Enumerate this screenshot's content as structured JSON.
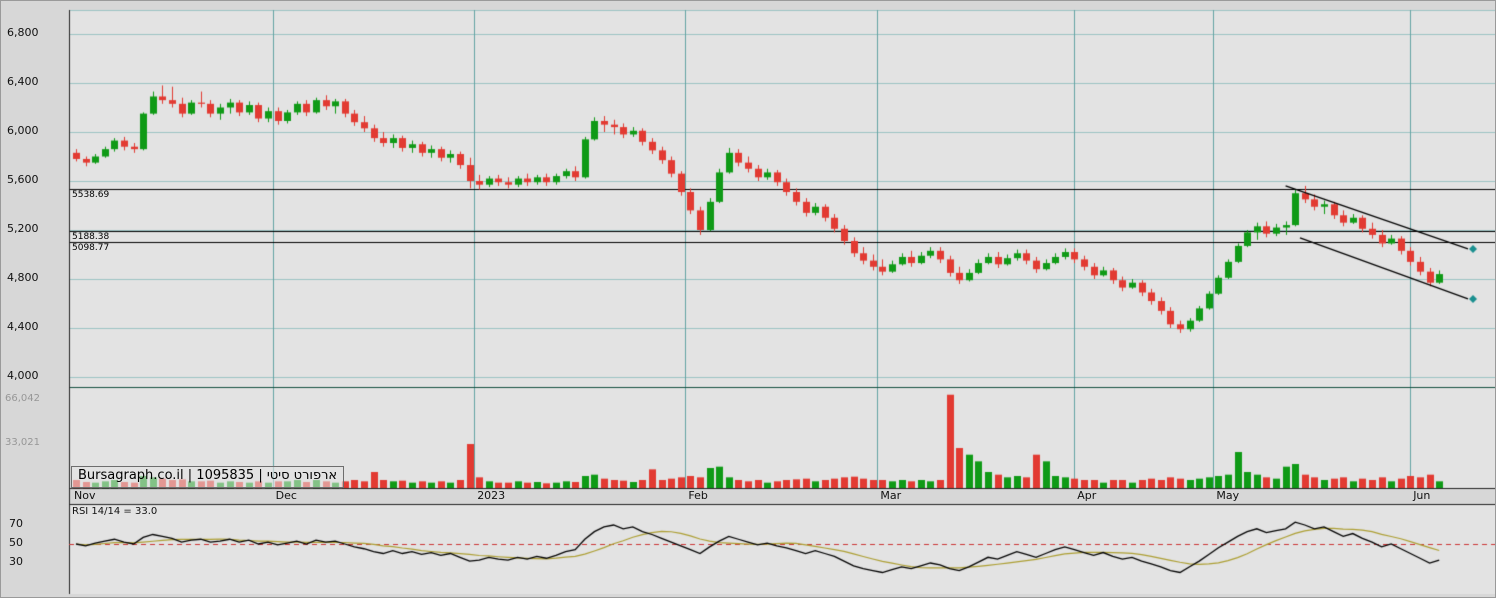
{
  "watermark": {
    "site": "Bursagraph.co.il",
    "security_id": "1095835",
    "security_name": "ארפורט סיטי",
    "display": "Bursagraph.co.il | 1095835 | ארפורט סיטי"
  },
  "price_axis": {
    "ticks": [
      [
        "6,800",
        6800
      ],
      [
        "6,400",
        6400
      ],
      [
        "6,000",
        6000
      ],
      [
        "5,600",
        5600
      ],
      [
        "5,200",
        5200
      ],
      [
        "4,800",
        4800
      ],
      [
        "4,400",
        4400
      ],
      [
        "4,000",
        4000
      ]
    ]
  },
  "volume_axis": {
    "ticks": [
      [
        "66,042",
        66042
      ],
      [
        "33,021",
        33021
      ]
    ]
  },
  "time_axis": {
    "ticks": [
      [
        "Nov",
        0
      ],
      [
        "Dec",
        21
      ],
      [
        "2023",
        42
      ],
      [
        "Feb",
        64
      ],
      [
        "Mar",
        84
      ],
      [
        "Apr",
        104.5
      ],
      [
        "May",
        119
      ],
      [
        "Jun",
        139.5
      ]
    ]
  },
  "levels": [
    [
      "5538.69",
      5538.69
    ],
    [
      "5188.38",
      5188.38
    ],
    [
      "5098.77",
      5098.77
    ]
  ],
  "rsi_panel": {
    "title": "RSI 14/14 = 33.0",
    "ticks": [
      [
        "70",
        70
      ],
      [
        "50",
        50
      ],
      [
        "30",
        30
      ]
    ],
    "mid": 50
  },
  "colors": {
    "stage_bg": "#d7d7d7",
    "plot_bg": "#e3e3e3",
    "grid": "#9cc4c4",
    "month_line": "#63a3a3",
    "pane_border": "#134f3f",
    "axis_line": "#222222",
    "up": "#0f9a16",
    "down": "#e23a32",
    "level_line": "#000000",
    "channel_line": "#000000",
    "marker": "#1a9090",
    "rsi_line": "#000000",
    "rsi_ma": "#ad9f32",
    "rsi_mid": "#cc3333",
    "vol_label": "#979797"
  },
  "chart_data": {
    "type": "candlestick",
    "title": "ארפורט סיטי (1095835) daily chart, Nov 2022 - Jun 2023, with volume and RSI",
    "ohlcv_format": [
      "open",
      "high",
      "low",
      "close",
      "volume"
    ],
    "ylim": [
      3800,
      7050
    ],
    "volume_scale_max": 66042,
    "rsi_period": "14/14",
    "rsi_last": 33.0,
    "horizontal_levels": [
      5538.69,
      5188.38,
      5098.77
    ],
    "channel": {
      "upper": [
        [
          126,
          5560
        ],
        [
          145,
          5045
        ]
      ],
      "lower": [
        [
          127.5,
          5135
        ],
        [
          145,
          4637
        ]
      ]
    },
    "candles": [
      [
        5830,
        5860,
        5760,
        5780,
        6000
      ],
      [
        5780,
        5800,
        5720,
        5750,
        4500
      ],
      [
        5750,
        5820,
        5740,
        5800,
        4000
      ],
      [
        5800,
        5880,
        5790,
        5860,
        5000
      ],
      [
        5860,
        5950,
        5840,
        5930,
        6000
      ],
      [
        5930,
        5960,
        5850,
        5880,
        4500
      ],
      [
        5880,
        5910,
        5830,
        5860,
        4000
      ],
      [
        5860,
        6160,
        5850,
        6150,
        9000
      ],
      [
        6150,
        6330,
        6140,
        6290,
        8000
      ],
      [
        6290,
        6380,
        6230,
        6260,
        7000
      ],
      [
        6260,
        6370,
        6200,
        6230,
        6000
      ],
      [
        6230,
        6280,
        6120,
        6150,
        6500
      ],
      [
        6150,
        6260,
        6140,
        6240,
        5000
      ],
      [
        6240,
        6330,
        6200,
        6230,
        5000
      ],
      [
        6230,
        6260,
        6120,
        6150,
        5500
      ],
      [
        6150,
        6230,
        6100,
        6200,
        4000
      ],
      [
        6200,
        6270,
        6150,
        6240,
        5000
      ],
      [
        6240,
        6260,
        6130,
        6160,
        4500
      ],
      [
        6160,
        6250,
        6140,
        6220,
        4000
      ],
      [
        6220,
        6240,
        6080,
        6110,
        5000
      ],
      [
        6110,
        6200,
        6080,
        6170,
        4000
      ],
      [
        6170,
        6200,
        6060,
        6090,
        5000
      ],
      [
        6090,
        6180,
        6070,
        6160,
        5000
      ],
      [
        6160,
        6250,
        6140,
        6230,
        6000
      ],
      [
        6230,
        6260,
        6130,
        6160,
        4500
      ],
      [
        6160,
        6280,
        6150,
        6260,
        6000
      ],
      [
        6260,
        6300,
        6180,
        6210,
        5000
      ],
      [
        6210,
        6270,
        6150,
        6250,
        4000
      ],
      [
        6250,
        6270,
        6120,
        6150,
        5000
      ],
      [
        6150,
        6180,
        6050,
        6080,
        6000
      ],
      [
        6080,
        6130,
        6000,
        6030,
        5000
      ],
      [
        6030,
        6060,
        5920,
        5950,
        12000
      ],
      [
        5950,
        6000,
        5880,
        5910,
        6000
      ],
      [
        5910,
        5980,
        5870,
        5950,
        5000
      ],
      [
        5950,
        5970,
        5840,
        5870,
        5500
      ],
      [
        5870,
        5930,
        5830,
        5900,
        4000
      ],
      [
        5900,
        5920,
        5800,
        5830,
        5000
      ],
      [
        5830,
        5890,
        5790,
        5860,
        4000
      ],
      [
        5860,
        5880,
        5760,
        5790,
        5000
      ],
      [
        5790,
        5850,
        5750,
        5820,
        4000
      ],
      [
        5820,
        5840,
        5700,
        5730,
        6000
      ],
      [
        5730,
        5790,
        5540,
        5600,
        33000
      ],
      [
        5600,
        5650,
        5530,
        5570,
        8000
      ],
      [
        5570,
        5640,
        5550,
        5620,
        5000
      ],
      [
        5620,
        5650,
        5560,
        5590,
        4000
      ],
      [
        5590,
        5630,
        5540,
        5570,
        4000
      ],
      [
        5570,
        5640,
        5550,
        5620,
        5000
      ],
      [
        5620,
        5660,
        5560,
        5590,
        4000
      ],
      [
        5590,
        5650,
        5570,
        5630,
        4500
      ],
      [
        5630,
        5660,
        5560,
        5590,
        3500
      ],
      [
        5590,
        5660,
        5570,
        5640,
        4000
      ],
      [
        5640,
        5700,
        5620,
        5680,
        5000
      ],
      [
        5680,
        5720,
        5600,
        5630,
        4500
      ],
      [
        5630,
        5960,
        5620,
        5940,
        9000
      ],
      [
        5940,
        6120,
        5930,
        6090,
        10000
      ],
      [
        6090,
        6130,
        6000,
        6060,
        7000
      ],
      [
        6060,
        6100,
        5980,
        6040,
        6000
      ],
      [
        6040,
        6070,
        5950,
        5980,
        5500
      ],
      [
        5980,
        6040,
        5960,
        6010,
        4500
      ],
      [
        6010,
        6030,
        5890,
        5920,
        6000
      ],
      [
        5920,
        5950,
        5820,
        5850,
        14000
      ],
      [
        5850,
        5880,
        5740,
        5770,
        6000
      ],
      [
        5770,
        5800,
        5630,
        5660,
        7000
      ],
      [
        5660,
        5680,
        5480,
        5510,
        8000
      ],
      [
        5510,
        5540,
        5330,
        5360,
        9000
      ],
      [
        5360,
        5390,
        5160,
        5200,
        8000
      ],
      [
        5200,
        5460,
        5190,
        5430,
        15000
      ],
      [
        5430,
        5700,
        5420,
        5670,
        16000
      ],
      [
        5670,
        5870,
        5660,
        5830,
        8000
      ],
      [
        5830,
        5860,
        5720,
        5750,
        6000
      ],
      [
        5750,
        5800,
        5670,
        5700,
        5000
      ],
      [
        5700,
        5730,
        5600,
        5630,
        6000
      ],
      [
        5630,
        5700,
        5610,
        5670,
        4000
      ],
      [
        5670,
        5690,
        5560,
        5590,
        5000
      ],
      [
        5590,
        5620,
        5480,
        5510,
        6000
      ],
      [
        5510,
        5540,
        5400,
        5430,
        6500
      ],
      [
        5430,
        5460,
        5310,
        5340,
        7000
      ],
      [
        5340,
        5420,
        5320,
        5390,
        5000
      ],
      [
        5390,
        5410,
        5270,
        5300,
        6000
      ],
      [
        5300,
        5330,
        5180,
        5210,
        7000
      ],
      [
        5210,
        5240,
        5080,
        5110,
        8000
      ],
      [
        5110,
        5140,
        4980,
        5010,
        8500
      ],
      [
        5010,
        5060,
        4920,
        4950,
        7000
      ],
      [
        4950,
        5000,
        4870,
        4900,
        6000
      ],
      [
        4900,
        4960,
        4830,
        4860,
        6000
      ],
      [
        4860,
        4950,
        4850,
        4920,
        5000
      ],
      [
        4920,
        5010,
        4910,
        4980,
        6000
      ],
      [
        4980,
        5030,
        4900,
        4930,
        5000
      ],
      [
        4930,
        5020,
        4920,
        4990,
        6000
      ],
      [
        4990,
        5060,
        4970,
        5030,
        5000
      ],
      [
        5030,
        5060,
        4930,
        4960,
        6000
      ],
      [
        4960,
        4990,
        4820,
        4850,
        70000
      ],
      [
        4850,
        4900,
        4760,
        4790,
        30000
      ],
      [
        4790,
        4880,
        4780,
        4850,
        25000
      ],
      [
        4850,
        4960,
        4840,
        4930,
        20000
      ],
      [
        4930,
        5010,
        4920,
        4980,
        12000
      ],
      [
        4980,
        5020,
        4890,
        4920,
        10000
      ],
      [
        4920,
        5000,
        4910,
        4970,
        8000
      ],
      [
        4970,
        5040,
        4950,
        5010,
        9000
      ],
      [
        5010,
        5040,
        4920,
        4950,
        8000
      ],
      [
        4950,
        4980,
        4850,
        4880,
        25000
      ],
      [
        4880,
        4960,
        4870,
        4930,
        20000
      ],
      [
        4930,
        5010,
        4920,
        4980,
        9000
      ],
      [
        4980,
        5050,
        4960,
        5020,
        8000
      ],
      [
        5020,
        5050,
        4930,
        4960,
        7000
      ],
      [
        4960,
        4990,
        4870,
        4900,
        6000
      ],
      [
        4900,
        4930,
        4800,
        4830,
        6000
      ],
      [
        4830,
        4900,
        4820,
        4870,
        4000
      ],
      [
        4870,
        4890,
        4760,
        4790,
        6000
      ],
      [
        4790,
        4820,
        4700,
        4730,
        6000
      ],
      [
        4730,
        4800,
        4720,
        4770,
        4000
      ],
      [
        4770,
        4790,
        4660,
        4690,
        6000
      ],
      [
        4690,
        4720,
        4590,
        4620,
        7000
      ],
      [
        4620,
        4650,
        4510,
        4540,
        6000
      ],
      [
        4540,
        4570,
        4400,
        4430,
        8000
      ],
      [
        4430,
        4460,
        4360,
        4390,
        7000
      ],
      [
        4390,
        4480,
        4370,
        4460,
        6000
      ],
      [
        4460,
        4580,
        4450,
        4560,
        7000
      ],
      [
        4560,
        4700,
        4550,
        4680,
        8000
      ],
      [
        4680,
        4830,
        4670,
        4810,
        9000
      ],
      [
        4810,
        4960,
        4800,
        4940,
        10000
      ],
      [
        4940,
        5090,
        4930,
        5070,
        27000
      ],
      [
        5070,
        5200,
        5060,
        5180,
        12000
      ],
      [
        5180,
        5260,
        5120,
        5230,
        10000
      ],
      [
        5230,
        5270,
        5140,
        5170,
        8000
      ],
      [
        5170,
        5250,
        5150,
        5220,
        7000
      ],
      [
        5220,
        5270,
        5160,
        5240,
        16000
      ],
      [
        5240,
        5530,
        5230,
        5500,
        18000
      ],
      [
        5500,
        5560,
        5420,
        5450,
        10000
      ],
      [
        5450,
        5490,
        5360,
        5390,
        8000
      ],
      [
        5390,
        5440,
        5330,
        5410,
        6000
      ],
      [
        5410,
        5430,
        5290,
        5320,
        7000
      ],
      [
        5320,
        5360,
        5230,
        5260,
        8000
      ],
      [
        5260,
        5330,
        5250,
        5300,
        5000
      ],
      [
        5300,
        5320,
        5180,
        5210,
        7000
      ],
      [
        5210,
        5260,
        5130,
        5160,
        6000
      ],
      [
        5160,
        5200,
        5060,
        5090,
        8000
      ],
      [
        5090,
        5160,
        5080,
        5130,
        5000
      ],
      [
        5130,
        5150,
        5000,
        5030,
        7000
      ],
      [
        5030,
        5060,
        4910,
        4940,
        9000
      ],
      [
        4940,
        4980,
        4830,
        4860,
        8000
      ],
      [
        4860,
        4890,
        4740,
        4770,
        10000
      ],
      [
        4770,
        4870,
        4760,
        4840,
        5000
      ]
    ],
    "rsi": [
      50,
      48,
      51,
      53,
      55,
      52,
      50,
      57,
      60,
      58,
      56,
      52,
      54,
      55,
      52,
      53,
      55,
      52,
      54,
      50,
      52,
      49,
      51,
      53,
      50,
      54,
      52,
      53,
      50,
      47,
      45,
      42,
      40,
      43,
      40,
      42,
      39,
      41,
      38,
      40,
      36,
      32,
      33,
      36,
      34,
      33,
      36,
      34,
      37,
      35,
      38,
      42,
      44,
      55,
      63,
      68,
      70,
      66,
      68,
      63,
      60,
      56,
      52,
      48,
      44,
      40,
      47,
      53,
      58,
      55,
      52,
      49,
      51,
      48,
      46,
      43,
      40,
      43,
      40,
      37,
      32,
      27,
      24,
      22,
      20,
      23,
      26,
      24,
      27,
      30,
      28,
      24,
      22,
      26,
      31,
      36,
      34,
      38,
      42,
      39,
      36,
      40,
      44,
      47,
      44,
      41,
      38,
      41,
      37,
      34,
      36,
      32,
      29,
      26,
      22,
      20,
      26,
      32,
      39,
      46,
      52,
      58,
      63,
      66,
      62,
      64,
      66,
      73,
      70,
      66,
      68,
      63,
      58,
      61,
      56,
      52,
      47,
      50,
      45,
      40,
      35,
      30,
      33
    ]
  }
}
